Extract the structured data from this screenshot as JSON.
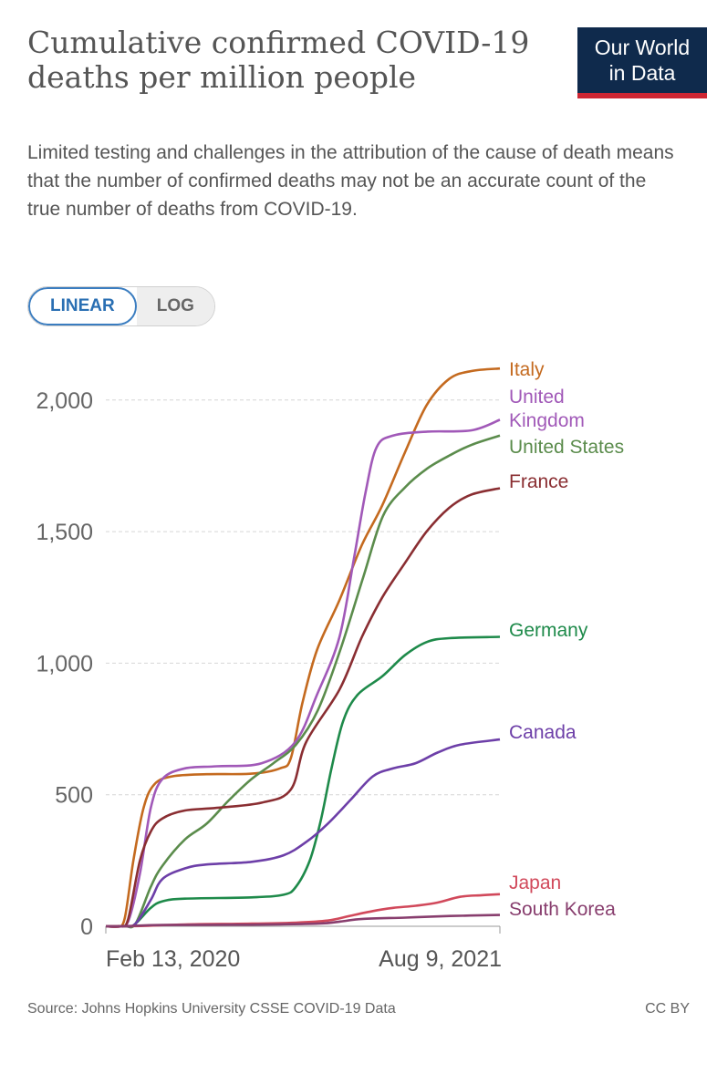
{
  "header": {
    "title": "Cumulative confirmed COVID-19 deaths per million people",
    "subtitle": "Limited testing and challenges in the attribution of the cause of death means that the number of confirmed deaths may not be an accurate count of the true number of deaths from COVID-19.",
    "logo_line1": "Our World",
    "logo_line2": "in Data"
  },
  "scale_toggle": {
    "linear_label": "LINEAR",
    "log_label": "LOG",
    "selected": "LINEAR"
  },
  "footer": {
    "source": "Source: Johns Hopkins University CSSE COVID-19 Data",
    "license": "CC BY"
  },
  "chart_data": {
    "type": "line",
    "title": "Cumulative confirmed COVID-19 deaths per million people",
    "xlabel": "",
    "ylabel": "",
    "x_start": "2020-02-13",
    "x_end": "2021-08-09",
    "x_tick_labels": [
      "Feb 13, 2020",
      "Aug 9, 2021"
    ],
    "ylim": [
      0,
      2150
    ],
    "y_ticks": [
      0,
      500,
      1000,
      1500,
      2000
    ],
    "y_tick_labels": [
      "0",
      "500",
      "1,000",
      "1,500",
      "2,000"
    ],
    "grid": "horizontal dashed",
    "legend": "labels at line ends (right)",
    "series": [
      {
        "name": "Italy",
        "color": "#c46a1f",
        "points": [
          [
            "2020-02-13",
            0
          ],
          [
            "2020-02-29",
            0
          ],
          [
            "2020-03-10",
            30
          ],
          [
            "2020-03-22",
            250
          ],
          [
            "2020-04-05",
            450
          ],
          [
            "2020-04-20",
            540
          ],
          [
            "2020-05-15",
            570
          ],
          [
            "2020-07-01",
            578
          ],
          [
            "2020-09-01",
            580
          ],
          [
            "2020-10-10",
            600
          ],
          [
            "2020-10-25",
            640
          ],
          [
            "2020-11-10",
            850
          ],
          [
            "2020-11-30",
            1050
          ],
          [
            "2020-12-31",
            1240
          ],
          [
            "2021-01-31",
            1450
          ],
          [
            "2021-02-28",
            1600
          ],
          [
            "2021-03-31",
            1800
          ],
          [
            "2021-04-30",
            1980
          ],
          [
            "2021-05-31",
            2080
          ],
          [
            "2021-06-30",
            2110
          ],
          [
            "2021-08-09",
            2120
          ]
        ]
      },
      {
        "name": "United Kingdom",
        "color": "#a159b8",
        "points": [
          [
            "2020-02-13",
            0
          ],
          [
            "2020-03-01",
            0
          ],
          [
            "2020-03-15",
            20
          ],
          [
            "2020-03-31",
            200
          ],
          [
            "2020-04-15",
            450
          ],
          [
            "2020-05-01",
            560
          ],
          [
            "2020-06-01",
            600
          ],
          [
            "2020-07-15",
            608
          ],
          [
            "2020-09-15",
            620
          ],
          [
            "2020-10-31",
            700
          ],
          [
            "2020-11-30",
            880
          ],
          [
            "2020-12-31",
            1100
          ],
          [
            "2021-01-20",
            1400
          ],
          [
            "2021-02-05",
            1650
          ],
          [
            "2021-02-20",
            1820
          ],
          [
            "2021-03-15",
            1865
          ],
          [
            "2021-05-01",
            1880
          ],
          [
            "2021-07-01",
            1885
          ],
          [
            "2021-08-09",
            1925
          ]
        ]
      },
      {
        "name": "United States",
        "color": "#5b8c4c",
        "points": [
          [
            "2020-02-13",
            0
          ],
          [
            "2020-03-10",
            0
          ],
          [
            "2020-03-25",
            10
          ],
          [
            "2020-04-15",
            150
          ],
          [
            "2020-05-01",
            230
          ],
          [
            "2020-06-01",
            330
          ],
          [
            "2020-07-01",
            390
          ],
          [
            "2020-08-01",
            480
          ],
          [
            "2020-09-01",
            560
          ],
          [
            "2020-10-01",
            620
          ],
          [
            "2020-11-01",
            690
          ],
          [
            "2020-12-01",
            820
          ],
          [
            "2021-01-01",
            1050
          ],
          [
            "2021-02-01",
            1320
          ],
          [
            "2021-03-01",
            1560
          ],
          [
            "2021-04-01",
            1670
          ],
          [
            "2021-05-01",
            1740
          ],
          [
            "2021-06-01",
            1790
          ],
          [
            "2021-07-01",
            1830
          ],
          [
            "2021-08-09",
            1865
          ]
        ]
      },
      {
        "name": "France",
        "color": "#8a2e32",
        "points": [
          [
            "2020-02-13",
            0
          ],
          [
            "2020-03-05",
            0
          ],
          [
            "2020-03-15",
            30
          ],
          [
            "2020-03-31",
            250
          ],
          [
            "2020-04-15",
            360
          ],
          [
            "2020-05-01",
            410
          ],
          [
            "2020-06-01",
            440
          ],
          [
            "2020-07-15",
            450
          ],
          [
            "2020-09-15",
            470
          ],
          [
            "2020-10-25",
            520
          ],
          [
            "2020-11-15",
            700
          ],
          [
            "2020-12-31",
            900
          ],
          [
            "2021-01-31",
            1100
          ],
          [
            "2021-02-28",
            1250
          ],
          [
            "2021-03-31",
            1380
          ],
          [
            "2021-04-30",
            1500
          ],
          [
            "2021-05-31",
            1590
          ],
          [
            "2021-06-30",
            1640
          ],
          [
            "2021-08-09",
            1665
          ]
        ]
      },
      {
        "name": "Germany",
        "color": "#1e8a4a",
        "points": [
          [
            "2020-02-13",
            0
          ],
          [
            "2020-03-15",
            0
          ],
          [
            "2020-03-25",
            10
          ],
          [
            "2020-04-15",
            70
          ],
          [
            "2020-05-01",
            95
          ],
          [
            "2020-06-01",
            105
          ],
          [
            "2020-09-01",
            110
          ],
          [
            "2020-10-15",
            120
          ],
          [
            "2020-11-01",
            150
          ],
          [
            "2020-11-20",
            250
          ],
          [
            "2020-12-05",
            400
          ],
          [
            "2020-12-20",
            600
          ],
          [
            "2021-01-05",
            780
          ],
          [
            "2021-01-25",
            880
          ],
          [
            "2021-02-28",
            950
          ],
          [
            "2021-03-31",
            1030
          ],
          [
            "2021-04-30",
            1080
          ],
          [
            "2021-05-31",
            1095
          ],
          [
            "2021-08-09",
            1100
          ]
        ]
      },
      {
        "name": "Canada",
        "color": "#6d3fa8",
        "points": [
          [
            "2020-02-13",
            0
          ],
          [
            "2020-03-10",
            0
          ],
          [
            "2020-03-25",
            10
          ],
          [
            "2020-04-15",
            100
          ],
          [
            "2020-05-01",
            180
          ],
          [
            "2020-06-01",
            220
          ],
          [
            "2020-07-01",
            235
          ],
          [
            "2020-09-01",
            245
          ],
          [
            "2020-10-15",
            270
          ],
          [
            "2020-11-15",
            320
          ],
          [
            "2020-12-15",
            390
          ],
          [
            "2021-01-15",
            480
          ],
          [
            "2021-02-15",
            570
          ],
          [
            "2021-03-15",
            600
          ],
          [
            "2021-04-15",
            620
          ],
          [
            "2021-05-15",
            660
          ],
          [
            "2021-06-15",
            690
          ],
          [
            "2021-08-09",
            710
          ]
        ]
      },
      {
        "name": "Japan",
        "color": "#d1495b",
        "points": [
          [
            "2020-02-13",
            0
          ],
          [
            "2020-04-01",
            1
          ],
          [
            "2020-06-01",
            7
          ],
          [
            "2020-09-01",
            10
          ],
          [
            "2020-11-01",
            14
          ],
          [
            "2020-12-15",
            22
          ],
          [
            "2021-01-15",
            40
          ],
          [
            "2021-02-15",
            58
          ],
          [
            "2021-03-15",
            70
          ],
          [
            "2021-04-15",
            78
          ],
          [
            "2021-05-15",
            90
          ],
          [
            "2021-06-15",
            112
          ],
          [
            "2021-07-15",
            118
          ],
          [
            "2021-08-09",
            122
          ]
        ]
      },
      {
        "name": "South Korea",
        "color": "#883e6e",
        "points": [
          [
            "2020-02-13",
            0
          ],
          [
            "2020-03-15",
            1
          ],
          [
            "2020-05-01",
            5
          ],
          [
            "2020-09-01",
            6
          ],
          [
            "2020-12-01",
            10
          ],
          [
            "2021-01-01",
            18
          ],
          [
            "2021-02-01",
            28
          ],
          [
            "2021-04-01",
            33
          ],
          [
            "2021-06-01",
            39
          ],
          [
            "2021-08-09",
            43
          ]
        ]
      }
    ],
    "end_labels": [
      {
        "lines": [
          "Italy"
        ],
        "color": "#c46a1f"
      },
      {
        "lines": [
          "United",
          "Kingdom"
        ],
        "color": "#a159b8"
      },
      {
        "lines": [
          "United States"
        ],
        "color": "#5b8c4c"
      },
      {
        "lines": [
          "France"
        ],
        "color": "#8a2e32"
      },
      {
        "lines": [
          "Germany"
        ],
        "color": "#1e8a4a"
      },
      {
        "lines": [
          "Canada"
        ],
        "color": "#6d3fa8"
      },
      {
        "lines": [
          "Japan"
        ],
        "color": "#d1495b"
      },
      {
        "lines": [
          "South Korea"
        ],
        "color": "#883e6e"
      }
    ]
  }
}
